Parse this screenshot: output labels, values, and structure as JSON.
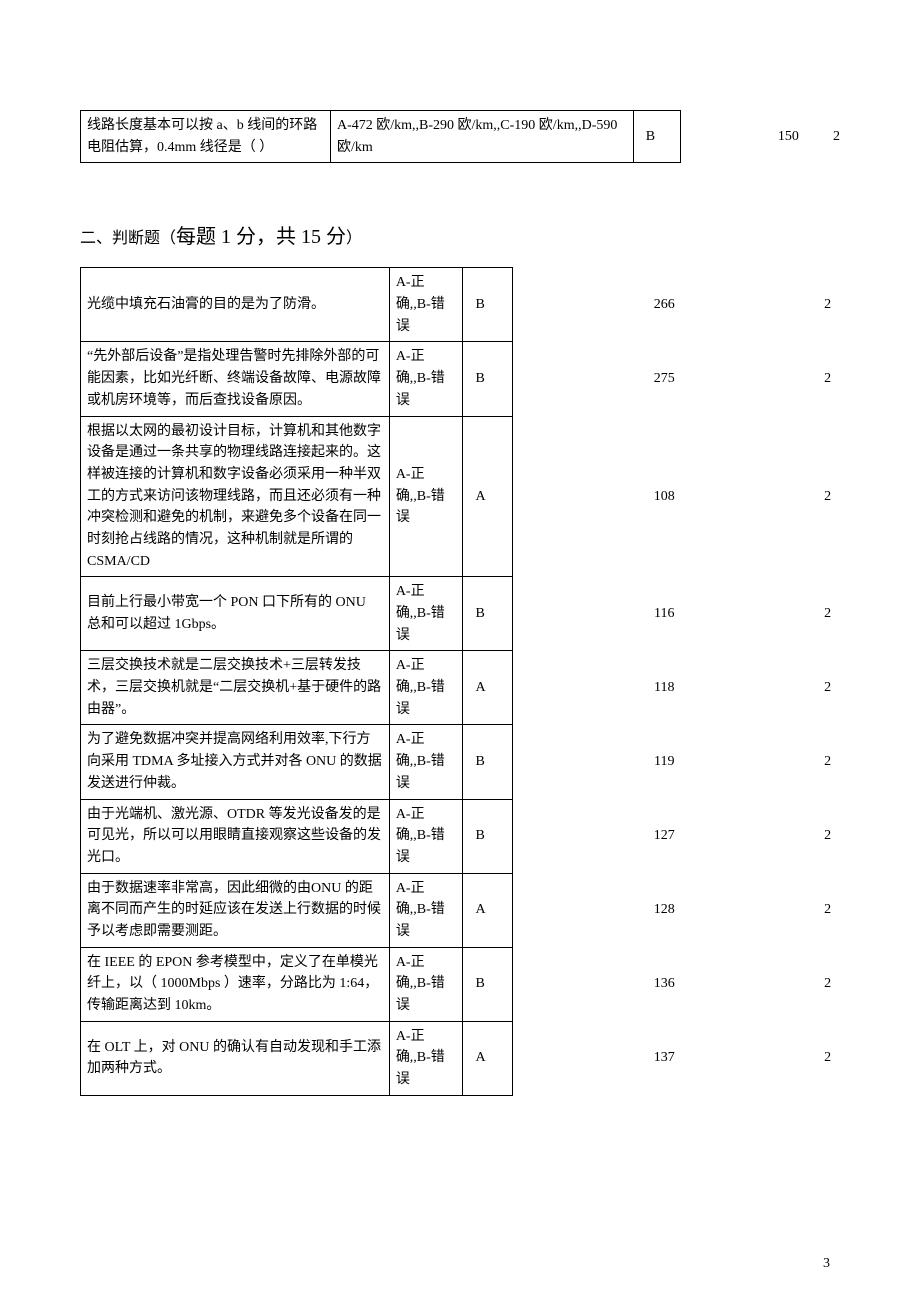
{
  "table1": {
    "rows": [
      {
        "question": "线路长度基本可以按 a、b 线间的环路电阻估算，0.4mm 线径是（  ）",
        "options": "A-472 欧/km,,B-290 欧/km,,C-190 欧/km,,D-590 欧/km",
        "answer": "B",
        "num1": "150",
        "num2": "2"
      }
    ]
  },
  "section2": {
    "title_prefix": "二、判断题（",
    "title_main": "每题 1 分，共 15 分",
    "title_suffix": "）",
    "option_text": "A-正确,,B-错误",
    "rows": [
      {
        "question": "光缆中填充石油膏的目的是为了防滑。",
        "answer": "B",
        "num1": "266",
        "num2": "2"
      },
      {
        "question": "“先外部后设备”是指处理告警时先排除外部的可能因素，比如光纤断、终端设备故障、电源故障或机房环境等，而后查找设备原因。",
        "answer": "B",
        "num1": "275",
        "num2": "2"
      },
      {
        "question": "根据以太网的最初设计目标，计算机和其他数字设备是通过一条共享的物理线路连接起来的。这样被连接的计算机和数字设备必须采用一种半双工的方式来访问该物理线路，而且还必须有一种冲突检测和避免的机制，来避免多个设备在同一时刻抢占线路的情况，这种机制就是所谓的 CSMA/CD",
        "answer": "A",
        "num1": "108",
        "num2": "2"
      },
      {
        "question": "目前上行最小带宽一个 PON 口下所有的 ONU 总和可以超过 1Gbps。",
        "answer": "B",
        "num1": "116",
        "num2": "2"
      },
      {
        "question": "三层交换技术就是二层交换技术+三层转发技术，三层交换机就是“二层交换机+基于硬件的路由器”。",
        "answer": "A",
        "num1": "118",
        "num2": "2"
      },
      {
        "question": "为了避免数据冲突并提高网络利用效率,下行方向采用 TDMA 多址接入方式并对各 ONU 的数据发送进行仲裁。",
        "answer": "B",
        "num1": "119",
        "num2": "2"
      },
      {
        "question": "由于光端机、激光源、OTDR 等发光设备发的是可见光，所以可以用眼睛直接观察这些设备的发光口。",
        "answer": "B",
        "num1": "127",
        "num2": "2"
      },
      {
        "question": "由于数据速率非常高，因此细微的由ONU 的距离不同而产生的时延应该在发送上行数据的时候予以考虑即需要测距。",
        "answer": "A",
        "num1": "128",
        "num2": "2"
      },
      {
        "question": "在 IEEE 的 EPON 参考模型中，定义了在单模光纤上，以（ 1000Mbps   ）速率，分路比为 1:64，传输距离达到 10km。",
        "answer": "B",
        "num1": "136",
        "num2": "2"
      },
      {
        "question": "在 OLT 上，对 ONU 的确认有自动发现和手工添加两种方式。",
        "answer": "A",
        "num1": "137",
        "num2": "2"
      }
    ]
  },
  "page_number": "3"
}
